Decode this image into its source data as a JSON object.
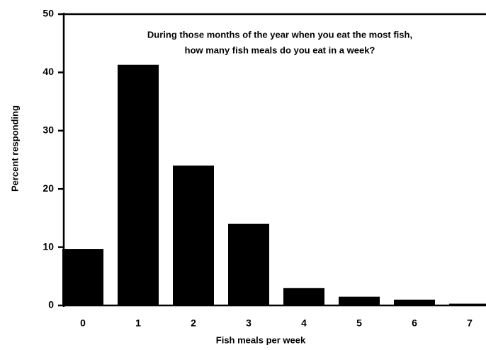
{
  "chart_data": {
    "type": "bar",
    "title_lines": [
      "During those months of the year when you eat the most fish,",
      "how many fish meals do you eat in a week?"
    ],
    "xlabel": "Fish meals per week",
    "ylabel": "Percent responding",
    "categories": [
      "0",
      "1",
      "2",
      "3",
      "4",
      "5",
      "6",
      "7"
    ],
    "values": [
      9.7,
      41.3,
      24,
      14,
      3,
      1.5,
      1,
      0.3
    ],
    "color": "#000000",
    "ylim": [
      0,
      50
    ],
    "yticks": [
      0,
      10,
      20,
      30,
      40,
      50
    ],
    "grid": false
  }
}
